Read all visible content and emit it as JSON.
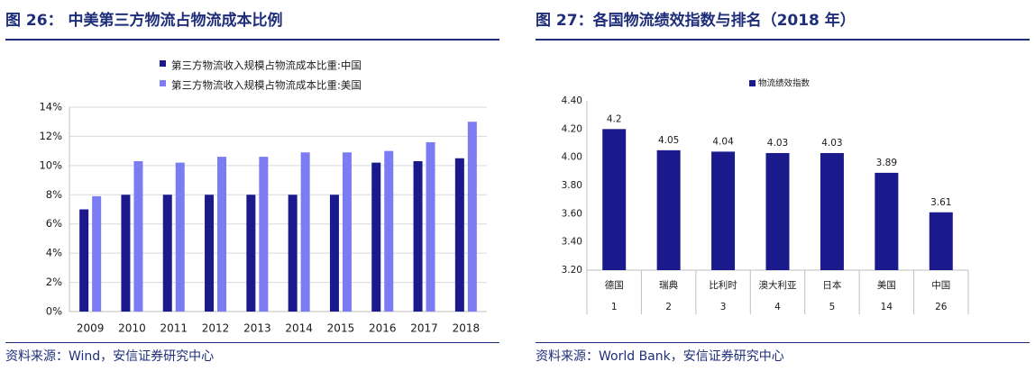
{
  "left": {
    "title": "图 26： 中美第三方物流占物流成本比例",
    "source": "资料来源：Wind，安信证券研究中心"
  },
  "right": {
    "title": "图 27：各国物流绩效指数与排名（2018 年）",
    "source": "资料来源：World Bank，安信证券研究中心"
  },
  "colors": {
    "dark": "#1a1a8c",
    "light": "#7b7bf2",
    "accent": "#1f2e7a"
  },
  "chart_data": [
    {
      "type": "bar",
      "categories": [
        "2009",
        "2010",
        "2011",
        "2012",
        "2013",
        "2014",
        "2015",
        "2016",
        "2017",
        "2018"
      ],
      "series": [
        {
          "name": "第三方物流收入规模占物流成本比重:中国",
          "values": [
            7.0,
            8.0,
            8.0,
            8.0,
            8.0,
            8.0,
            8.0,
            10.2,
            10.3,
            10.5
          ]
        },
        {
          "name": "第三方物流收入规模占物流成本比重:美国",
          "values": [
            7.9,
            10.3,
            10.2,
            10.6,
            10.6,
            10.9,
            10.9,
            11.0,
            11.6,
            13.0
          ]
        }
      ],
      "yticks": [
        "0%",
        "2%",
        "4%",
        "6%",
        "8%",
        "10%",
        "12%",
        "14%"
      ],
      "ylim": [
        0,
        14
      ],
      "legend_position": "top"
    },
    {
      "type": "bar",
      "categories": [
        "德国",
        "瑞典",
        "比利时",
        "澳大利亚",
        "日本",
        "美国",
        "中国"
      ],
      "ranks": [
        "1",
        "2",
        "3",
        "4",
        "5",
        "14",
        "26"
      ],
      "series": [
        {
          "name": "物流绩效指数",
          "values": [
            4.2,
            4.05,
            4.04,
            4.03,
            4.03,
            3.89,
            3.61
          ]
        }
      ],
      "value_labels": [
        "4.2",
        "4.05",
        "4.04",
        "4.03",
        "4.03",
        "3.89",
        "3.61"
      ],
      "yticks": [
        "3.20",
        "3.40",
        "3.60",
        "3.80",
        "4.00",
        "4.20",
        "4.40"
      ],
      "ylim": [
        3.2,
        4.4
      ],
      "legend_position": "top"
    }
  ]
}
